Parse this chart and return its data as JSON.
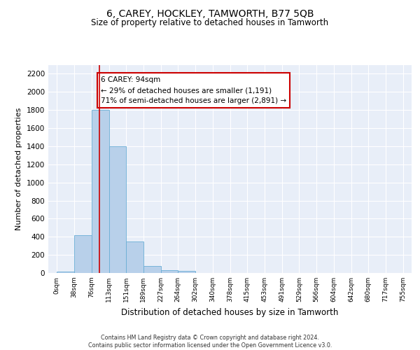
{
  "title": "6, CAREY, HOCKLEY, TAMWORTH, B77 5QB",
  "subtitle": "Size of property relative to detached houses in Tamworth",
  "xlabel": "Distribution of detached houses by size in Tamworth",
  "ylabel": "Number of detached properties",
  "bin_labels": [
    "0sqm",
    "38sqm",
    "76sqm",
    "113sqm",
    "151sqm",
    "189sqm",
    "227sqm",
    "264sqm",
    "302sqm",
    "340sqm",
    "378sqm",
    "415sqm",
    "453sqm",
    "491sqm",
    "529sqm",
    "566sqm",
    "604sqm",
    "642sqm",
    "680sqm",
    "717sqm",
    "755sqm"
  ],
  "bar_values": [
    15,
    420,
    1800,
    1400,
    350,
    80,
    30,
    20,
    0,
    0,
    0,
    0,
    0,
    0,
    0,
    0,
    0,
    0,
    0,
    0
  ],
  "bar_color": "#b8d0ea",
  "bar_edge_color": "#6aaed6",
  "background_color": "#e8eef8",
  "grid_color": "#ffffff",
  "annotation_text": "6 CAREY: 94sqm\n← 29% of detached houses are smaller (1,191)\n71% of semi-detached houses are larger (2,891) →",
  "annotation_box_color": "#ffffff",
  "annotation_box_edge_color": "#cc0000",
  "vline_x": 94,
  "vline_color": "#cc0000",
  "bin_width": 38,
  "ylim": [
    0,
    2300
  ],
  "yticks": [
    0,
    200,
    400,
    600,
    800,
    1000,
    1200,
    1400,
    1600,
    1800,
    2000,
    2200
  ],
  "footer_line1": "Contains HM Land Registry data © Crown copyright and database right 2024.",
  "footer_line2": "Contains public sector information licensed under the Open Government Licence v3.0."
}
